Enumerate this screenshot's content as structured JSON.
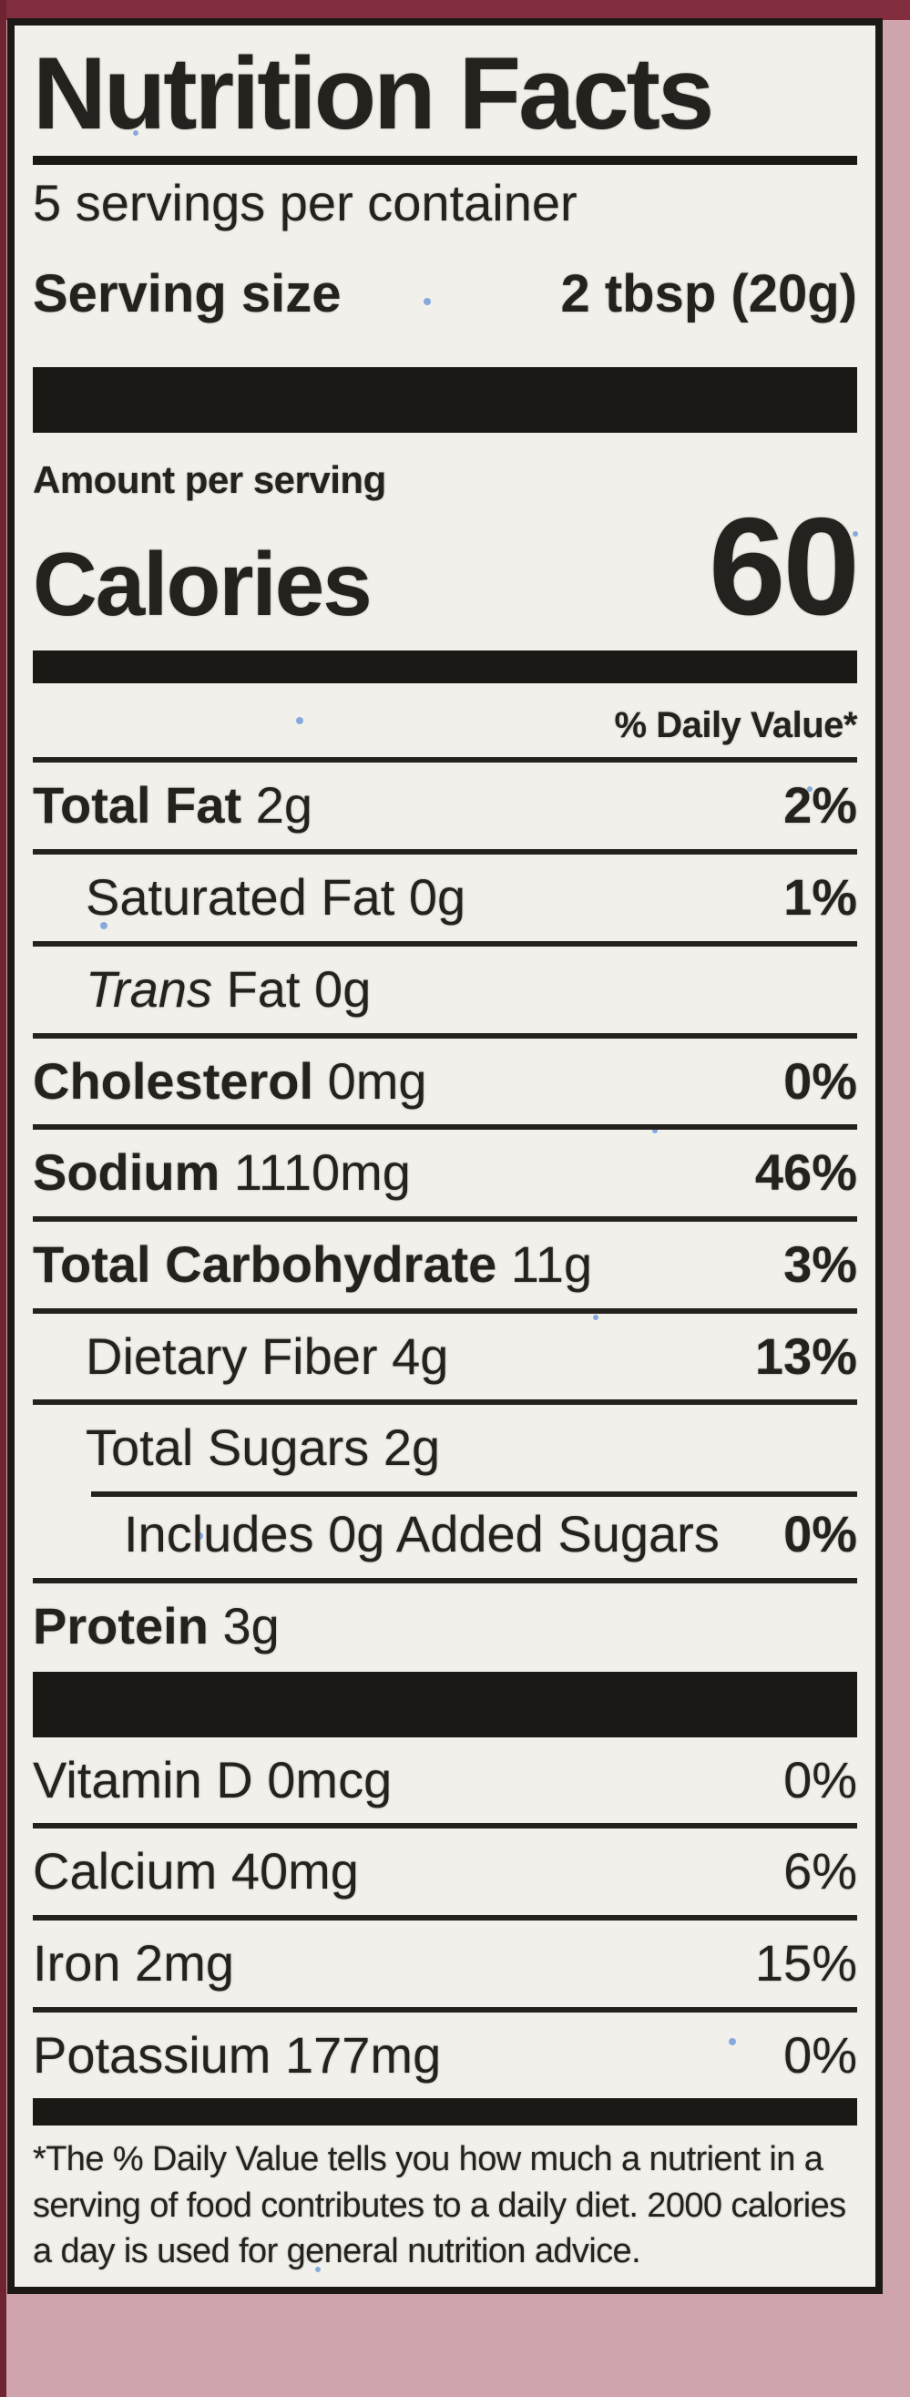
{
  "colors": {
    "paper": "#f2f0ea",
    "ink": "#24211f",
    "bar": "#1b1816",
    "backdrop_pink": "#d0a4ad",
    "top_maroon": "#822e3f",
    "left_maroon": "#6e2431",
    "speckle_blue": "#4f86d8"
  },
  "header": {
    "title": "Nutrition Facts",
    "servings_per_container": "5 servings per container",
    "serving_size_label": "Serving size",
    "serving_size_value": "2 tbsp (20g)"
  },
  "calories": {
    "amount_per_serving_label": "Amount per serving",
    "calories_label": "Calories",
    "calories_value": "60"
  },
  "daily_value_header": "% Daily Value*",
  "nutrients": {
    "rows": [
      {
        "name": "Total Fat",
        "amount": "2g",
        "dv": "2%",
        "bold": true,
        "indent": 0,
        "sep": "none"
      },
      {
        "name": "Saturated Fat",
        "amount": "0g",
        "dv": "1%",
        "bold": false,
        "indent": 1,
        "sep": "full"
      },
      {
        "italic_lead": "Trans",
        "name": "Fat",
        "amount": "0g",
        "dv": "",
        "bold": false,
        "indent": 1,
        "sep": "full"
      },
      {
        "name": "Cholesterol",
        "amount": "0mg",
        "dv": "0%",
        "bold": true,
        "indent": 0,
        "sep": "full"
      },
      {
        "name": "Sodium",
        "amount": "1110mg",
        "dv": "46%",
        "bold": true,
        "indent": 0,
        "sep": "full"
      },
      {
        "name": "Total Carbohydrate",
        "amount": "11g",
        "dv": "3%",
        "bold": true,
        "indent": 0,
        "sep": "full"
      },
      {
        "name": "Dietary Fiber",
        "amount": "4g",
        "dv": "13%",
        "bold": false,
        "indent": 1,
        "sep": "full"
      },
      {
        "name": "Total Sugars",
        "amount": "2g",
        "dv": "",
        "bold": false,
        "indent": 1,
        "sep": "full"
      },
      {
        "name": "Includes 0g Added Sugars",
        "amount": "",
        "dv": "0%",
        "bold": false,
        "indent": 2,
        "sep": "indent"
      },
      {
        "name": "Protein",
        "amount": "3g",
        "dv": "",
        "bold": true,
        "indent": 0,
        "sep": "full"
      }
    ]
  },
  "vitamins": {
    "rows": [
      {
        "name": "Vitamin D",
        "amount": "0mcg",
        "dv": "0%"
      },
      {
        "name": "Calcium",
        "amount": "40mg",
        "dv": "6%"
      },
      {
        "name": "Iron",
        "amount": "2mg",
        "dv": "15%"
      },
      {
        "name": "Potassium",
        "amount": "177mg",
        "dv": "0%"
      }
    ]
  },
  "footnote": "*The % Daily Value tells you how much a nutrient in a serving of food contributes to a daily diet. 2000 calories a day is used for general nutrition advice."
}
